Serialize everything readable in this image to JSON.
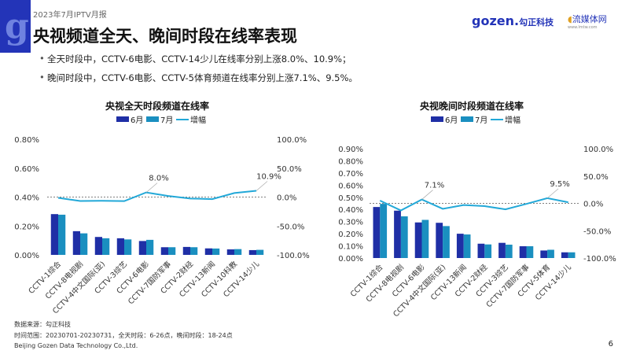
{
  "header": {
    "report": "2023年7月IPTV月报",
    "title": "央视频道全天、晚间时段在线率表现",
    "brand_gozen": "gozen.",
    "brand_gozen_cn": "勾正科技",
    "brand_lmtw": "流媒体网",
    "brand_lmtw_url": "www.lmtw.com"
  },
  "bullets": [
    "全天时段中，CCTV-6电影、CCTV-14少儿在线率分别上涨8.0%、10.9%；",
    "晚间时段中，CCTV-6电影、CCTV-5体育频道在线率分别上涨7.1%、9.5%。"
  ],
  "footer": {
    "source": "数据来源：勾正科技",
    "range": "时间范围：20230701-20230731，全天时段：6-26点，晚间时段：18-24点",
    "company": "Beijing Gozen Data Technology Co.,Ltd.",
    "page": "6"
  },
  "colors": {
    "june": "#1f2fa6",
    "july": "#1a8fc0",
    "growth": "#22a8d8",
    "accent": "#2334b8"
  },
  "chart_data": [
    {
      "type": "bar+line",
      "title": "央视全天时段频道在线率",
      "legend": [
        "6月",
        "7月",
        "增幅"
      ],
      "legend_position": "top",
      "categories": [
        "CCTV-1综合",
        "CCTV-8电视剧",
        "CCTV-4中文国际(亚)",
        "CCTV-3综艺",
        "CCTV-6电影",
        "CCTV-7国防军事",
        "CCTV-2财经",
        "CCTV-13新闻",
        "CCTV-10科教",
        "CCTV-14少儿"
      ],
      "series": [
        {
          "name": "6月",
          "axis": "left",
          "values": [
            0.282,
            0.164,
            0.124,
            0.115,
            0.096,
            0.053,
            0.055,
            0.045,
            0.038,
            0.033
          ]
        },
        {
          "name": "7月",
          "axis": "left",
          "values": [
            0.278,
            0.149,
            0.115,
            0.107,
            0.104,
            0.053,
            0.053,
            0.044,
            0.04,
            0.035
          ]
        },
        {
          "name": "增幅",
          "axis": "right",
          "values": [
            -1.4,
            -6.8,
            -6.4,
            -7.0,
            8.0,
            1.9,
            -2.5,
            -3.5,
            7.0,
            10.9
          ]
        }
      ],
      "annotations": [
        {
          "index": 4,
          "text": "8.0%"
        },
        {
          "index": 9,
          "text": "10.9%"
        }
      ],
      "ylim_left": [
        0,
        0.8
      ],
      "yticks_left": [
        "0.00%",
        "0.20%",
        "0.40%",
        "0.60%",
        "0.80%"
      ],
      "ylim_right": [
        -100,
        100
      ],
      "yticks_right": [
        "-100.0%",
        "-50.0%",
        "0.0%",
        "50.0%",
        "100.0%"
      ]
    },
    {
      "type": "bar+line",
      "title": "央视晚间时段频道在线率",
      "legend": [
        "6月",
        "7月",
        "增幅"
      ],
      "legend_position": "top",
      "categories": [
        "CCTV-1综合",
        "CCTV-8电视剧",
        "CCTV-6电影",
        "CCTV-4中文国际(亚)",
        "CCTV-13新闻",
        "CCTV-2财经",
        "CCTV-3综艺",
        "CCTV-7国防军事",
        "CCTV-5体育",
        "CCTV-14少儿"
      ],
      "series": [
        {
          "name": "6月",
          "axis": "left",
          "values": [
            0.42,
            0.39,
            0.293,
            0.29,
            0.2,
            0.118,
            0.125,
            0.097,
            0.062,
            0.047
          ]
        },
        {
          "name": "7月",
          "axis": "left",
          "values": [
            0.446,
            0.343,
            0.314,
            0.263,
            0.194,
            0.112,
            0.11,
            0.097,
            0.068,
            0.047
          ]
        },
        {
          "name": "增幅",
          "axis": "right",
          "values": [
            5,
            -13,
            7.1,
            -10,
            -3,
            -5,
            -11,
            -1,
            9.5,
            2
          ]
        }
      ],
      "annotations": [
        {
          "index": 2,
          "text": "7.1%"
        },
        {
          "index": 8,
          "text": "9.5%"
        }
      ],
      "ylim_left": [
        0,
        0.9
      ],
      "yticks_left": [
        "0.00%",
        "0.10%",
        "0.20%",
        "0.30%",
        "0.40%",
        "0.50%",
        "0.60%",
        "0.70%",
        "0.80%",
        "0.90%"
      ],
      "ylim_right": [
        -100,
        100
      ],
      "yticks_right": [
        "-100.0%",
        "-50.0%",
        "0.0%",
        "50.0%",
        "100.0%"
      ]
    }
  ]
}
